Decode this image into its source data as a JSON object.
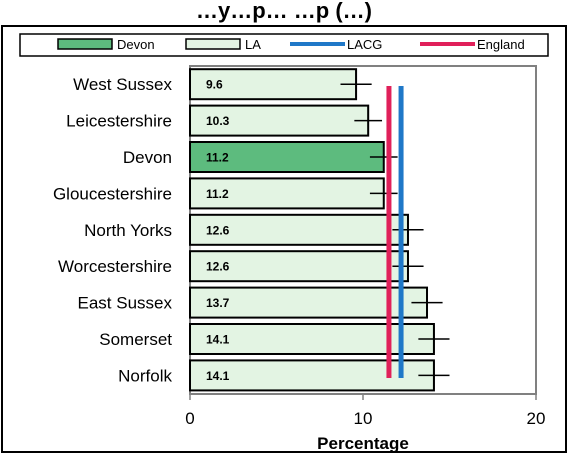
{
  "chart_data": {
    "type": "bar",
    "orientation": "horizontal",
    "title": "…y…p… …p (…)",
    "xlabel": "Percentage",
    "ylabel": "",
    "xlim": [
      0,
      20
    ],
    "xticks": [
      0,
      10,
      20
    ],
    "grid": false,
    "legend_position": "top",
    "categories": [
      "West Sussex",
      "Leicestershire",
      "Devon",
      "Gloucestershire",
      "North Yorks",
      "Worcestershire",
      "East Sussex",
      "Somerset",
      "Norfolk"
    ],
    "values": [
      9.6,
      10.3,
      11.2,
      11.2,
      12.6,
      12.6,
      13.7,
      14.1,
      14.1
    ],
    "value_labels": [
      "9.6",
      "10.3",
      "11.2",
      "11.2",
      "12.6",
      "12.6",
      "13.7",
      "14.1",
      "14.1"
    ],
    "highlight_category": "Devon",
    "error_bars": [
      {
        "low": 8.7,
        "high": 10.5
      },
      {
        "low": 9.5,
        "high": 11.1
      },
      {
        "low": 10.4,
        "high": 12.0
      },
      {
        "low": 10.4,
        "high": 12.0
      },
      {
        "low": 11.7,
        "high": 13.5
      },
      {
        "low": 11.7,
        "high": 13.5
      },
      {
        "low": 12.8,
        "high": 14.6
      },
      {
        "low": 13.2,
        "high": 15.0
      },
      {
        "low": 13.2,
        "high": 15.0
      }
    ],
    "reference_lines": [
      {
        "name": "LACG",
        "value": 12.2,
        "color": "#1f78c8"
      },
      {
        "name": "England",
        "value": 11.5,
        "color": "#e0205a"
      }
    ],
    "legend": [
      {
        "label": "Devon",
        "kind": "box",
        "color": "#5dbb7e"
      },
      {
        "label": "LA",
        "kind": "box",
        "color": "#e3f4e3"
      },
      {
        "label": "LACG",
        "kind": "line",
        "color": "#1f78c8"
      },
      {
        "label": "England",
        "kind": "line",
        "color": "#e0205a"
      }
    ],
    "colors": {
      "bar": "#e3f4e3",
      "highlight": "#5dbb7e",
      "plot_bg": "#ffffff",
      "border": "#808080"
    }
  }
}
